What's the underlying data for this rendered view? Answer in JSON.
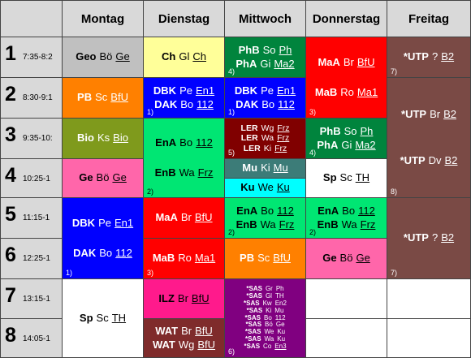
{
  "days": [
    "Montag",
    "Dienstag",
    "Mittwoch",
    "Donnerstag",
    "Freitag"
  ],
  "periods": [
    {
      "num": "1",
      "time": "7:35-8:2"
    },
    {
      "num": "2",
      "time": "8:30-9:1"
    },
    {
      "num": "3",
      "time": "9:35-10:"
    },
    {
      "num": "4",
      "time": "10:25-1"
    },
    {
      "num": "5",
      "time": "11:15-1"
    },
    {
      "num": "6",
      "time": "12:25-1"
    },
    {
      "num": "7",
      "time": "13:15-1"
    },
    {
      "num": "8",
      "time": "14:05-1"
    }
  ],
  "colors": {
    "header_bg": "#d9d9d9",
    "grey": "#c0c0c0",
    "yellow": "#ffff99",
    "green": "#00843d",
    "red": "#ff0000",
    "maroon": "#7f2b2b",
    "brown": "#7a4a45",
    "orange": "#ff8000",
    "blue": "#0000ff",
    "olive": "#7f9a1c",
    "mint": "#00e673",
    "darkred": "#800000",
    "teal": "#3c7c78",
    "cyan": "#00ffff",
    "pink": "#ff66aa",
    "white": "#ffffff",
    "hotpink": "#ff1a8c",
    "purple": "#800080"
  },
  "cells": [
    {
      "id": "mo-1",
      "lines": [
        [
          {
            "t": "Geo",
            "c": "sub"
          },
          {
            "t": "Bö"
          },
          {
            "t": "Ge",
            "c": "room"
          }
        ]
      ],
      "note": ""
    },
    {
      "id": "mo-2",
      "lines": [
        [
          {
            "t": "PB",
            "c": "sub"
          },
          {
            "t": "Sc"
          },
          {
            "t": "BfU",
            "c": "room"
          }
        ]
      ],
      "note": ""
    },
    {
      "id": "mo-3",
      "lines": [
        [
          {
            "t": "Bio",
            "c": "sub"
          },
          {
            "t": "Ks"
          },
          {
            "t": "Bio",
            "c": "room"
          }
        ]
      ],
      "note": ""
    },
    {
      "id": "mo-4",
      "lines": [
        [
          {
            "t": "Ge",
            "c": "sub"
          },
          {
            "t": "Bö"
          },
          {
            "t": "Ge",
            "c": "room"
          }
        ]
      ],
      "note": ""
    },
    {
      "id": "mo-56",
      "lines": [
        [
          {
            "t": "DBK",
            "c": "sub"
          },
          {
            "t": "Pe"
          },
          {
            "t": "En1",
            "c": "room"
          }
        ],
        "gap",
        [
          {
            "t": "DAK",
            "c": "sub"
          },
          {
            "t": "Bo"
          },
          {
            "t": "112",
            "c": "room"
          }
        ]
      ],
      "note": "1)"
    },
    {
      "id": "mo-78",
      "lines": [
        [
          {
            "t": "Sp",
            "c": "sub"
          },
          {
            "t": "Sc"
          },
          {
            "t": "TH",
            "c": "room"
          }
        ]
      ],
      "note": ""
    },
    {
      "id": "di-1",
      "lines": [
        [
          {
            "t": "Ch",
            "c": "sub"
          },
          {
            "t": "Gl"
          },
          {
            "t": "Ch",
            "c": "room"
          }
        ]
      ],
      "note": ""
    },
    {
      "id": "di-2",
      "lines": [
        [
          {
            "t": "DBK",
            "c": "sub"
          },
          {
            "t": "Pe"
          },
          {
            "t": "En1",
            "c": "room"
          }
        ],
        [
          {
            "t": "DAK",
            "c": "sub"
          },
          {
            "t": "Bo"
          },
          {
            "t": "112",
            "c": "room"
          }
        ]
      ],
      "note": "1)"
    },
    {
      "id": "di-34",
      "lines": [
        [
          {
            "t": "EnA",
            "c": "sub"
          },
          {
            "t": "Bo"
          },
          {
            "t": "112",
            "c": "room"
          }
        ],
        "gap",
        [
          {
            "t": "EnB",
            "c": "sub"
          },
          {
            "t": "Wa"
          },
          {
            "t": "Frz",
            "c": "room"
          }
        ]
      ],
      "note": "2)"
    },
    {
      "id": "di-5",
      "lines": [
        [
          {
            "t": "MaA",
            "c": "sub"
          },
          {
            "t": "Br"
          },
          {
            "t": "BfU",
            "c": "room"
          }
        ]
      ],
      "note": ""
    },
    {
      "id": "di-6",
      "lines": [
        [
          {
            "t": "MaB",
            "c": "sub"
          },
          {
            "t": "Ro"
          },
          {
            "t": "Ma1",
            "c": "room"
          }
        ]
      ],
      "note": "3)"
    },
    {
      "id": "di-7",
      "lines": [
        [
          {
            "t": "ILZ",
            "c": "sub"
          },
          {
            "t": "Br"
          },
          {
            "t": "BfU",
            "c": "room"
          }
        ]
      ],
      "note": ""
    },
    {
      "id": "di-8",
      "lines": [
        [
          {
            "t": "WAT",
            "c": "sub"
          },
          {
            "t": "Br"
          },
          {
            "t": "BfU",
            "c": "room"
          }
        ],
        [
          {
            "t": "WAT",
            "c": "sub"
          },
          {
            "t": "Wg"
          },
          {
            "t": "BfU",
            "c": "room"
          }
        ]
      ],
      "note": ""
    },
    {
      "id": "mi-1",
      "lines": [
        [
          {
            "t": "PhB",
            "c": "sub"
          },
          {
            "t": "So"
          },
          {
            "t": "Ph",
            "c": "room"
          }
        ],
        [
          {
            "t": "PhA",
            "c": "sub"
          },
          {
            "t": "Gi"
          },
          {
            "t": "Ma2",
            "c": "room"
          }
        ]
      ],
      "note": "4)"
    },
    {
      "id": "mi-2",
      "lines": [
        [
          {
            "t": "DBK",
            "c": "sub"
          },
          {
            "t": "Pe"
          },
          {
            "t": "En1",
            "c": "room"
          }
        ],
        [
          {
            "t": "DAK",
            "c": "sub"
          },
          {
            "t": "Bo"
          },
          {
            "t": "112",
            "c": "room"
          }
        ]
      ],
      "note": "1)"
    },
    {
      "id": "mi-3",
      "lines": [
        [
          {
            "t": "LER",
            "c": "sub"
          },
          {
            "t": "Wg"
          },
          {
            "t": "Frz",
            "c": "room"
          }
        ],
        [
          {
            "t": "LER",
            "c": "sub"
          },
          {
            "t": "Wa"
          },
          {
            "t": "Frz",
            "c": "room"
          }
        ],
        [
          {
            "t": "LER",
            "c": "sub"
          },
          {
            "t": "Ki"
          },
          {
            "t": "Frz",
            "c": "room"
          }
        ]
      ],
      "note": "5)"
    },
    {
      "id": "mi-4a",
      "lines": [
        [
          {
            "t": "Mu",
            "c": "sub"
          },
          {
            "t": "Ki"
          },
          {
            "t": "Mu",
            "c": "room"
          }
        ]
      ],
      "note": ""
    },
    {
      "id": "mi-4b",
      "lines": [
        [
          {
            "t": "Ku",
            "c": "sub"
          },
          {
            "t": "We"
          },
          {
            "t": "Ku",
            "c": "room"
          }
        ]
      ],
      "note": ""
    },
    {
      "id": "mi-5",
      "lines": [
        [
          {
            "t": "EnA",
            "c": "sub"
          },
          {
            "t": "Bo"
          },
          {
            "t": "112",
            "c": "room"
          }
        ],
        [
          {
            "t": "EnB",
            "c": "sub"
          },
          {
            "t": "Wa"
          },
          {
            "t": "Frz",
            "c": "room"
          }
        ]
      ],
      "note": "2)"
    },
    {
      "id": "mi-6",
      "lines": [
        [
          {
            "t": "PB",
            "c": "sub"
          },
          {
            "t": "Sc"
          },
          {
            "t": "BfU",
            "c": "room"
          }
        ]
      ],
      "note": ""
    },
    {
      "id": "mi-78",
      "lines": [
        [
          {
            "t": "*SAS",
            "c": "sub"
          },
          {
            "t": "Gr"
          },
          {
            "t": "Ph"
          }
        ],
        [
          {
            "t": "*SAS",
            "c": "sub"
          },
          {
            "t": "Gl"
          },
          {
            "t": "TH"
          }
        ],
        [
          {
            "t": "*SAS",
            "c": "sub"
          },
          {
            "t": "Kw"
          },
          {
            "t": "En2"
          }
        ],
        [
          {
            "t": "*SAS",
            "c": "sub"
          },
          {
            "t": "Ki"
          },
          {
            "t": "Mu"
          }
        ],
        [
          {
            "t": "*SAS",
            "c": "sub"
          },
          {
            "t": "Bo"
          },
          {
            "t": "112"
          }
        ],
        [
          {
            "t": "*SAS",
            "c": "sub"
          },
          {
            "t": "Bö"
          },
          {
            "t": "Ge"
          }
        ],
        [
          {
            "t": "*SAS",
            "c": "sub"
          },
          {
            "t": "We"
          },
          {
            "t": "Ku"
          }
        ],
        [
          {
            "t": "*SAS",
            "c": "sub"
          },
          {
            "t": "Wa"
          },
          {
            "t": "Ku"
          }
        ],
        [
          {
            "t": "*SAS",
            "c": "sub"
          },
          {
            "t": "Co"
          },
          {
            "t": "En3",
            "c": "room"
          }
        ]
      ],
      "note": "6)"
    },
    {
      "id": "do-12",
      "lines": [
        [
          {
            "t": "MaA",
            "c": "sub"
          },
          {
            "t": "Br"
          },
          {
            "t": "BfU",
            "c": "room"
          }
        ],
        "gap",
        [
          {
            "t": "MaB",
            "c": "sub"
          },
          {
            "t": "Ro"
          },
          {
            "t": "Ma1",
            "c": "room"
          }
        ]
      ],
      "note": "3)"
    },
    {
      "id": "do-3",
      "lines": [
        [
          {
            "t": "PhB",
            "c": "sub"
          },
          {
            "t": "So"
          },
          {
            "t": "Ph",
            "c": "room"
          }
        ],
        [
          {
            "t": "PhA",
            "c": "sub"
          },
          {
            "t": "Gi"
          },
          {
            "t": "Ma2",
            "c": "room"
          }
        ]
      ],
      "note": "4)"
    },
    {
      "id": "do-4",
      "lines": [
        [
          {
            "t": "Sp",
            "c": "sub"
          },
          {
            "t": "Sc"
          },
          {
            "t": "TH",
            "c": "room"
          }
        ]
      ],
      "note": ""
    },
    {
      "id": "do-5",
      "lines": [
        [
          {
            "t": "EnA",
            "c": "sub"
          },
          {
            "t": "Bo"
          },
          {
            "t": "112",
            "c": "room"
          }
        ],
        [
          {
            "t": "EnB",
            "c": "sub"
          },
          {
            "t": "Wa"
          },
          {
            "t": "Frz",
            "c": "room"
          }
        ]
      ],
      "note": "2)"
    },
    {
      "id": "do-6",
      "lines": [
        [
          {
            "t": "Ge",
            "c": "sub"
          },
          {
            "t": "Bö"
          },
          {
            "t": "Ge",
            "c": "room"
          }
        ]
      ],
      "note": ""
    },
    {
      "id": "do-7",
      "lines": [],
      "note": ""
    },
    {
      "id": "do-8",
      "lines": [],
      "note": ""
    },
    {
      "id": "fr-1",
      "lines": [
        [
          {
            "t": "*UTP",
            "c": "sub"
          },
          {
            "t": "?"
          },
          {
            "t": "B2",
            "c": "room"
          }
        ]
      ],
      "note": "7)"
    },
    {
      "id": "fr-24",
      "lines": [
        [
          {
            "t": "*UTP",
            "c": "sub"
          },
          {
            "t": "Br"
          },
          {
            "t": "B2",
            "c": "room"
          }
        ],
        "gap",
        "gap",
        [
          {
            "t": "*UTP",
            "c": "sub"
          },
          {
            "t": "Dv"
          },
          {
            "t": "B2",
            "c": "room"
          }
        ]
      ],
      "note": "8)"
    },
    {
      "id": "fr-56",
      "lines": [
        [
          {
            "t": "*UTP",
            "c": "sub"
          },
          {
            "t": "?"
          },
          {
            "t": "B2",
            "c": "room"
          }
        ]
      ],
      "note": "7)"
    },
    {
      "id": "fr-7",
      "lines": [],
      "note": ""
    },
    {
      "id": "fr-8",
      "lines": [],
      "note": ""
    }
  ]
}
